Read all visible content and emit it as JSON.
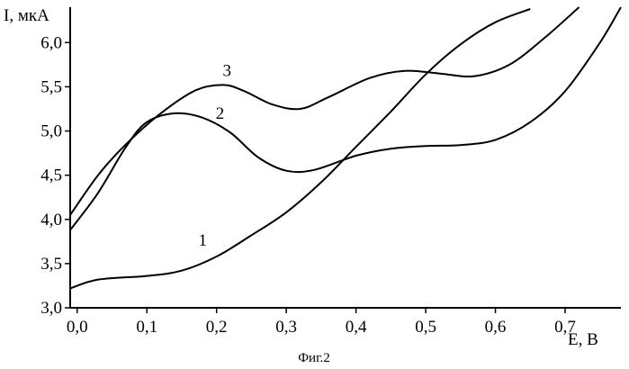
{
  "chart_data": {
    "type": "line",
    "title": "",
    "xlabel": "E, В",
    "ylabel": "I, мкА",
    "caption": "Фиг.2",
    "xlim": [
      -0.01,
      0.78
    ],
    "ylim": [
      3.0,
      6.4
    ],
    "x_ticks": [
      0.0,
      0.1,
      0.2,
      0.3,
      0.4,
      0.5,
      0.6,
      0.7
    ],
    "x_tick_labels": [
      "0,0",
      "0,1",
      "0,2",
      "0,3",
      "0,4",
      "0,5",
      "0,6",
      "0,7"
    ],
    "y_ticks": [
      3.0,
      3.5,
      4.0,
      4.5,
      5.0,
      5.5,
      6.0
    ],
    "y_tick_labels": [
      "3,0",
      "3,5",
      "4,0",
      "4,5",
      "5,0",
      "5,5",
      "6,0"
    ],
    "grid": false,
    "legend": "none",
    "series": [
      {
        "name": "1",
        "x": [
          -0.01,
          0.03,
          0.1,
          0.15,
          0.2,
          0.25,
          0.3,
          0.35,
          0.4,
          0.45,
          0.5,
          0.55,
          0.6,
          0.65
        ],
        "y": [
          3.22,
          3.32,
          3.36,
          3.42,
          3.58,
          3.82,
          4.08,
          4.42,
          4.82,
          5.22,
          5.64,
          5.98,
          6.23,
          6.38
        ],
        "label_at": [
          0.18,
          3.7
        ]
      },
      {
        "name": "2",
        "x": [
          -0.01,
          0.03,
          0.07,
          0.1,
          0.14,
          0.18,
          0.22,
          0.26,
          0.3,
          0.34,
          0.4,
          0.45,
          0.5,
          0.55,
          0.6,
          0.65,
          0.7,
          0.75,
          0.78
        ],
        "y": [
          3.88,
          4.3,
          4.82,
          5.1,
          5.2,
          5.15,
          4.98,
          4.7,
          4.55,
          4.56,
          4.72,
          4.8,
          4.83,
          4.84,
          4.9,
          5.1,
          5.45,
          6.0,
          6.4
        ],
        "label_at": [
          0.205,
          5.14
        ]
      },
      {
        "name": "3",
        "x": [
          -0.01,
          0.03,
          0.07,
          0.12,
          0.17,
          0.21,
          0.24,
          0.28,
          0.32,
          0.36,
          0.42,
          0.47,
          0.52,
          0.57,
          0.62,
          0.67,
          0.72
        ],
        "y": [
          4.05,
          4.5,
          4.85,
          5.2,
          5.46,
          5.52,
          5.45,
          5.3,
          5.25,
          5.38,
          5.6,
          5.68,
          5.65,
          5.62,
          5.75,
          6.05,
          6.4
        ],
        "label_at": [
          0.215,
          5.62
        ]
      }
    ]
  }
}
